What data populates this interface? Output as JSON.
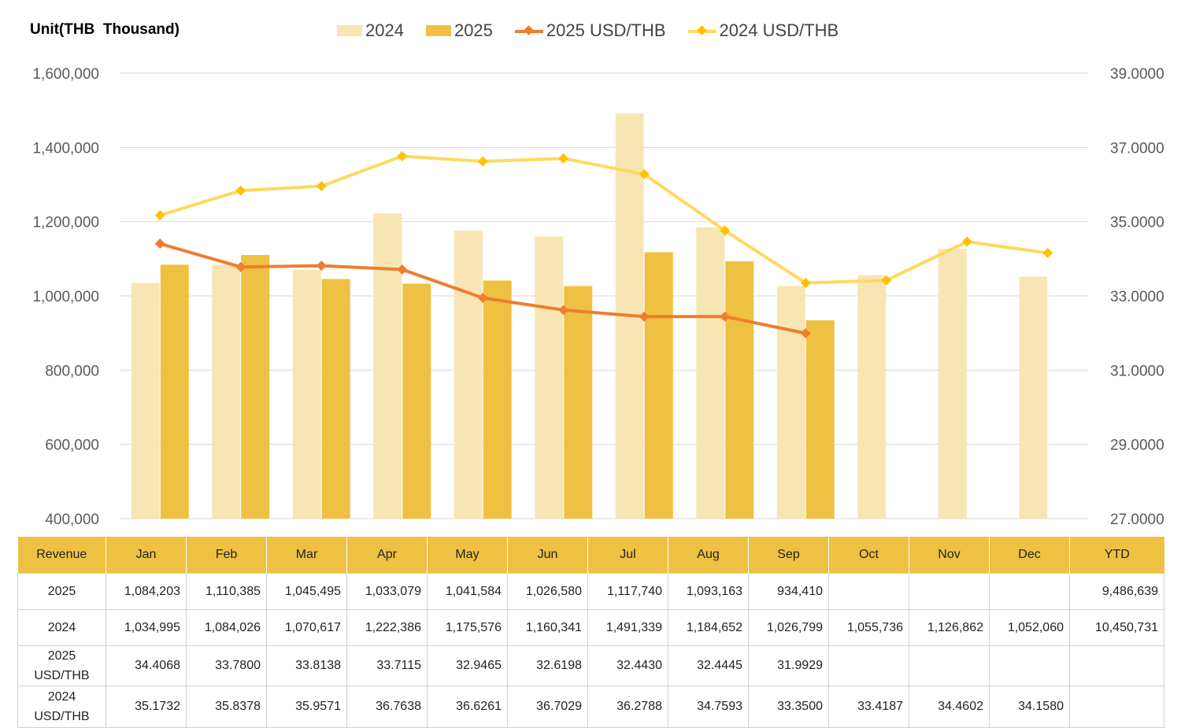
{
  "unit_label": "Unit(THB  Thousand)",
  "legend": [
    {
      "label": "2024",
      "kind": "bar",
      "color": "#F8E5B4"
    },
    {
      "label": "2025",
      "kind": "bar",
      "color": "#EFC142"
    },
    {
      "label": "2025 USD/THB",
      "kind": "line",
      "color": "#EE7D2F"
    },
    {
      "label": "2024 USD/THB",
      "kind": "line",
      "color": "#FFD85E"
    }
  ],
  "chart_data": {
    "type": "bar",
    "categories": [
      "Jan",
      "Feb",
      "Mar",
      "Apr",
      "May",
      "Jun",
      "Jul",
      "Aug",
      "Sep",
      "Oct",
      "Nov",
      "Dec"
    ],
    "series": [
      {
        "name": "2024",
        "type": "bar",
        "axis": "left",
        "color": "#F8E5B4",
        "values": [
          1034995,
          1084026,
          1070617,
          1222386,
          1175576,
          1160341,
          1491339,
          1184652,
          1026799,
          1055736,
          1126862,
          1052060
        ]
      },
      {
        "name": "2025",
        "type": "bar",
        "axis": "left",
        "color": "#EFC142",
        "values": [
          1084203,
          1110385,
          1045495,
          1033079,
          1041584,
          1026580,
          1117740,
          1093163,
          934410,
          null,
          null,
          null
        ]
      },
      {
        "name": "2025 USD/THB",
        "type": "line",
        "axis": "right",
        "color": "#EE7D2F",
        "values": [
          34.4068,
          33.78,
          33.8138,
          33.7115,
          32.9465,
          32.6198,
          32.443,
          32.4445,
          31.9929,
          null,
          null,
          null
        ]
      },
      {
        "name": "2024 USD/THB",
        "type": "line",
        "axis": "right",
        "color": "#FFD85E",
        "values": [
          35.1732,
          35.8378,
          35.9571,
          36.7638,
          36.6261,
          36.7029,
          36.2788,
          34.7593,
          33.35,
          33.4187,
          34.4602,
          34.158
        ]
      }
    ],
    "y_left": {
      "lim": [
        400000,
        1600000
      ],
      "ticks": [
        "400,000",
        "600,000",
        "800,000",
        "1,000,000",
        "1,200,000",
        "1,400,000",
        "1,600,000"
      ]
    },
    "y_right": {
      "lim": [
        27,
        39
      ],
      "ticks": [
        "27.0000",
        "29.0000",
        "31.0000",
        "33.0000",
        "35.0000",
        "37.0000",
        "39.0000"
      ]
    },
    "grid": true,
    "legend_position": "top"
  },
  "table": {
    "headers": [
      "Revenue",
      "Jan",
      "Feb",
      "Mar",
      "Apr",
      "May",
      "Jun",
      "Jul",
      "Aug",
      "Sep",
      "Oct",
      "Nov",
      "Dec",
      "YTD"
    ],
    "rows": [
      {
        "label_lines": [
          "2025"
        ],
        "cells": [
          "1,084,203",
          "1,110,385",
          "1,045,495",
          "1,033,079",
          "1,041,584",
          "1,026,580",
          "1,117,740",
          "1,093,163",
          "934,410",
          "",
          "",
          "",
          "9,486,639"
        ]
      },
      {
        "label_lines": [
          "2024"
        ],
        "cells": [
          "1,034,995",
          "1,084,026",
          "1,070,617",
          "1,222,386",
          "1,175,576",
          "1,160,341",
          "1,491,339",
          "1,184,652",
          "1,026,799",
          "1,055,736",
          "1,126,862",
          "1,052,060",
          "10,450,731"
        ]
      },
      {
        "label_lines": [
          "2025",
          "USD/THB"
        ],
        "cells": [
          "34.4068",
          "33.7800",
          "33.8138",
          "33.7115",
          "32.9465",
          "32.6198",
          "32.4430",
          "32.4445",
          "31.9929",
          "",
          "",
          "",
          ""
        ]
      },
      {
        "label_lines": [
          "2024",
          "USD/THB"
        ],
        "cells": [
          "35.1732",
          "35.8378",
          "35.9571",
          "36.7638",
          "36.6261",
          "36.7029",
          "36.2788",
          "34.7593",
          "33.3500",
          "33.4187",
          "34.4602",
          "34.1580",
          ""
        ]
      }
    ]
  }
}
